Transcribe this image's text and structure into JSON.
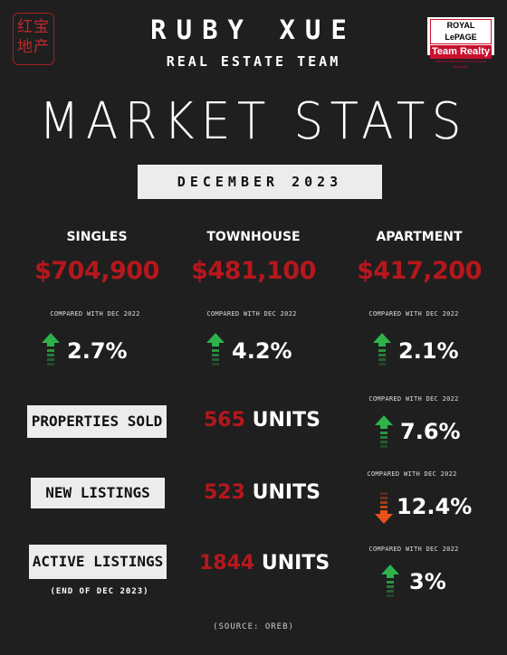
{
  "header": {
    "logo_text": "红宝\n地产",
    "team_name": "RUBY XUE",
    "team_sub": "REAL ESTATE TEAM",
    "partner_logo_line1": "ROYAL LePAGE",
    "partner_logo_line2": "Team Realty",
    "partner_logo_line3": "Independently Owned and Operated Brokerage",
    "title": "MARKET STATS",
    "period": "DECEMBER 2023"
  },
  "colors": {
    "accent_red": "#b5171d",
    "arrow_up": "#2db34a",
    "arrow_down": "#e8511a",
    "background": "#1f1f1f"
  },
  "compared_label": "COMPARED WITH DEC 2022",
  "property_types": [
    {
      "label": "SINGLES",
      "price": "$704,900",
      "change": "2.7%",
      "direction": "up"
    },
    {
      "label": "TOWNHOUSE",
      "price": "$481,100",
      "change": "4.2%",
      "direction": "up"
    },
    {
      "label": "APARTMENT",
      "price": "$417,200",
      "change": "2.1%",
      "direction": "up"
    }
  ],
  "metrics": [
    {
      "label": "PROPERTIES SOLD",
      "number": "565",
      "unit": "UNITS",
      "change": "7.6%",
      "direction": "up"
    },
    {
      "label": "NEW LISTINGS",
      "number": "523",
      "unit": "UNITS",
      "change": "12.4%",
      "direction": "down"
    },
    {
      "label": "ACTIVE LISTINGS",
      "number": "1844",
      "unit": "UNITS",
      "change": "3%",
      "direction": "up",
      "note": "(END OF DEC 2023)"
    }
  ],
  "source": "(SOURCE: OREB)"
}
